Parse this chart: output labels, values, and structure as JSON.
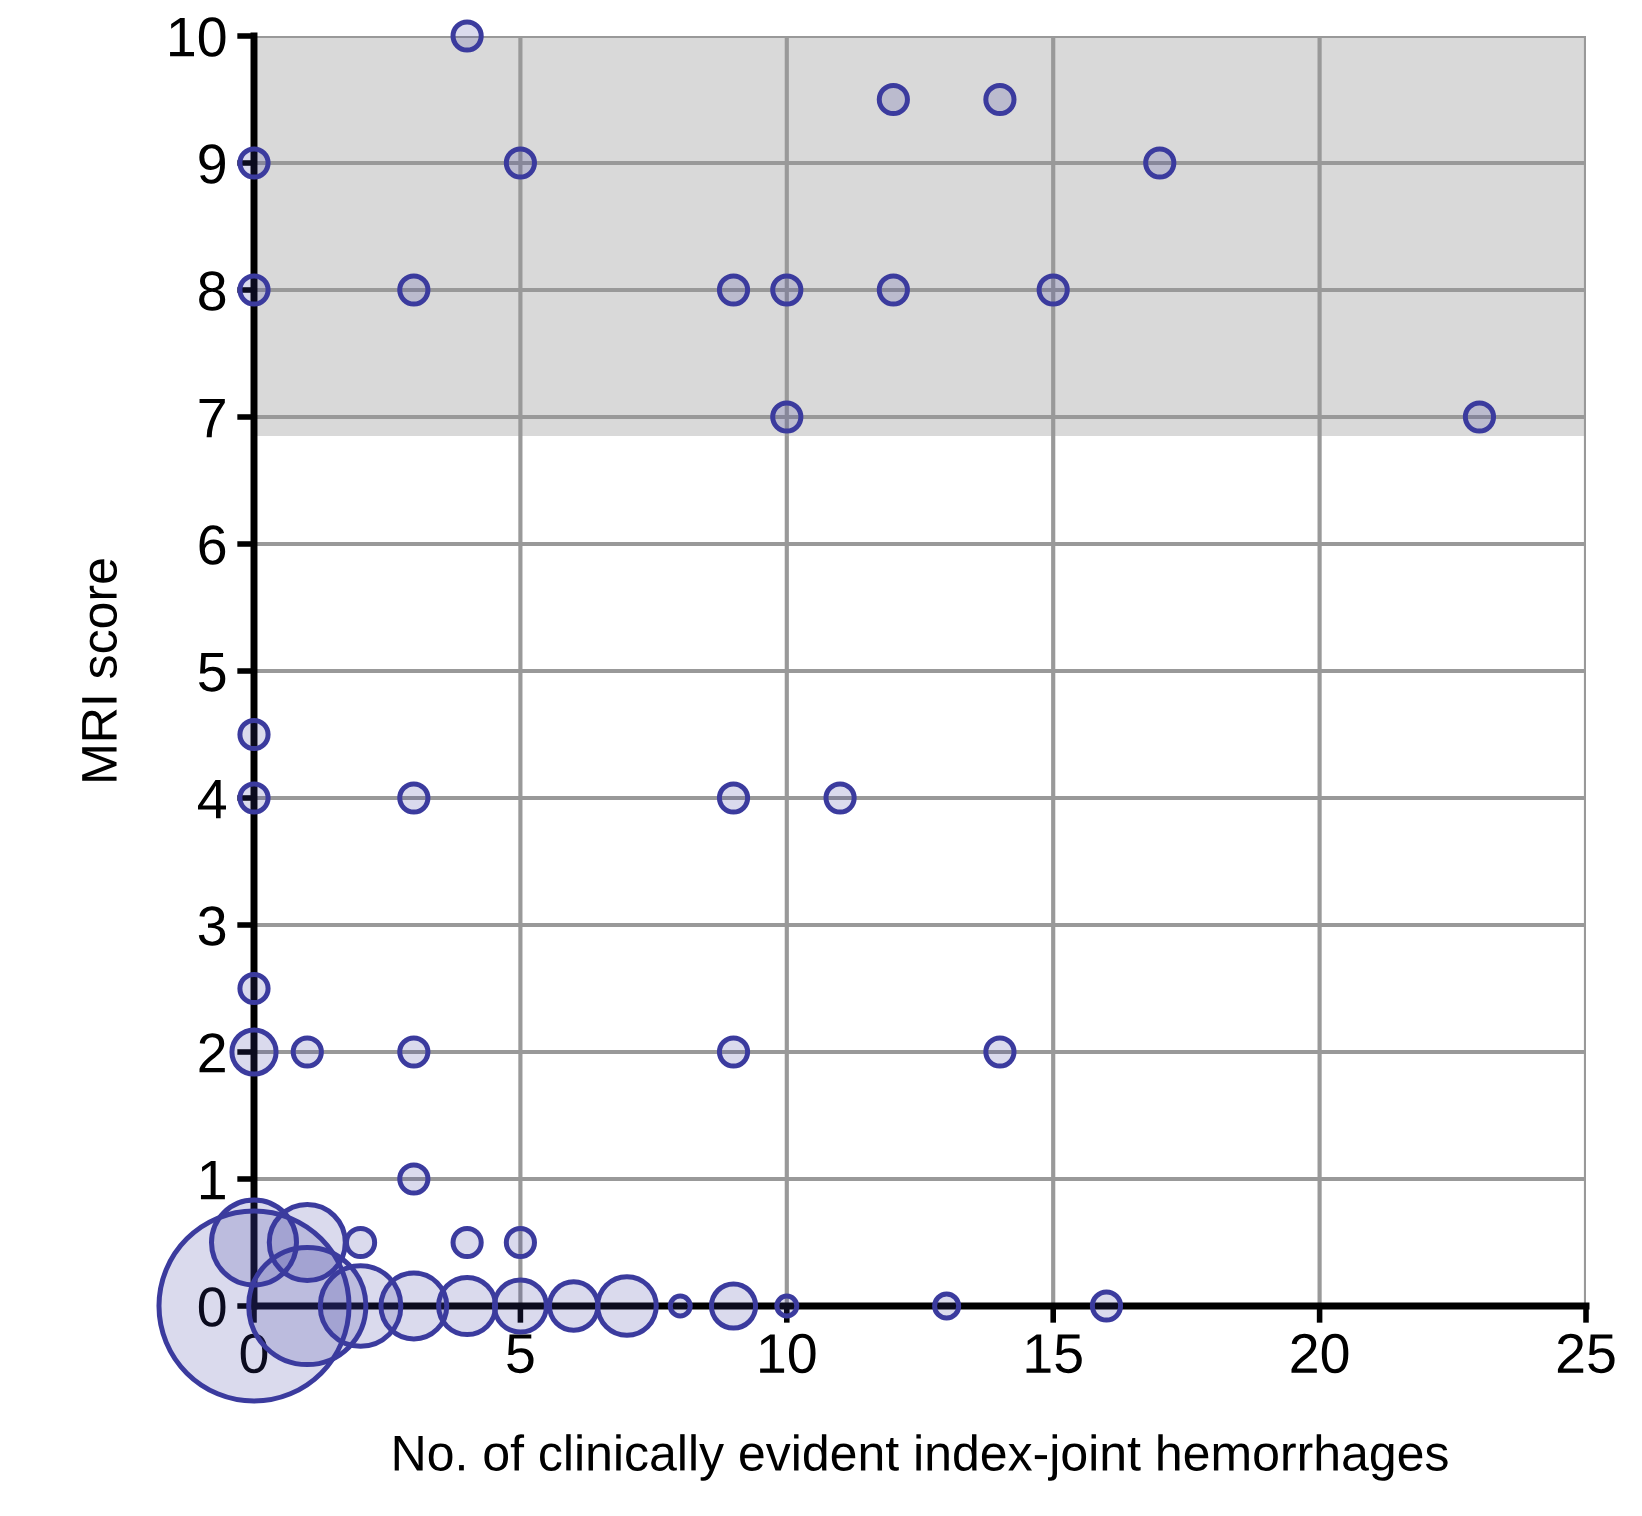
{
  "chart_data": {
    "type": "bubble",
    "xlabel": "No. of clinically evident index-joint hemorrhages",
    "ylabel": "MRI score",
    "xlim": [
      0,
      25
    ],
    "xticks": [
      0,
      5,
      10,
      15,
      20,
      25
    ],
    "ylim": [
      0,
      10
    ],
    "yticks": [
      0,
      1,
      2,
      3,
      4,
      5,
      6,
      7,
      8,
      9,
      10
    ],
    "grid": true,
    "bands": [
      {
        "axis": "y",
        "from": 6.85,
        "to": 10,
        "color": "#d9d9d9"
      }
    ],
    "series": [
      {
        "color": "#3b3b9e",
        "x": [
          4,
          0,
          5,
          12,
          14,
          17,
          0,
          3,
          9,
          10,
          12,
          15,
          10,
          23,
          0,
          0,
          3,
          9,
          11,
          0,
          0,
          1,
          3,
          9,
          14,
          3,
          0,
          1,
          2,
          4,
          5,
          0,
          1,
          2,
          3,
          4,
          5,
          6,
          7,
          8,
          9,
          10,
          13,
          16
        ],
        "values": [
          10,
          9,
          9,
          9.5,
          9.5,
          9,
          8,
          8,
          8,
          8,
          8,
          8,
          7,
          7,
          4.5,
          4,
          4,
          4,
          4,
          2.5,
          2,
          2,
          2,
          2,
          2,
          1,
          0.5,
          0.5,
          0.5,
          0.5,
          0.5,
          0,
          0,
          0,
          0,
          0,
          0,
          0,
          0,
          0,
          0,
          0,
          0,
          0
        ],
        "sizes": [
          0.022,
          0.022,
          0.022,
          0.022,
          0.022,
          0.022,
          0.022,
          0.022,
          0.022,
          0.022,
          0.022,
          0.022,
          0.022,
          0.022,
          0.022,
          0.022,
          0.022,
          0.022,
          0.022,
          0.022,
          0.054,
          0.022,
          0.022,
          0.022,
          0.022,
          0.022,
          0.2,
          0.16,
          0.022,
          0.022,
          0.022,
          1,
          0.38,
          0.18,
          0.12,
          0.09,
          0.075,
          0.065,
          0.095,
          0.011,
          0.054,
          0.011,
          0.016,
          0.022
        ]
      }
    ]
  }
}
